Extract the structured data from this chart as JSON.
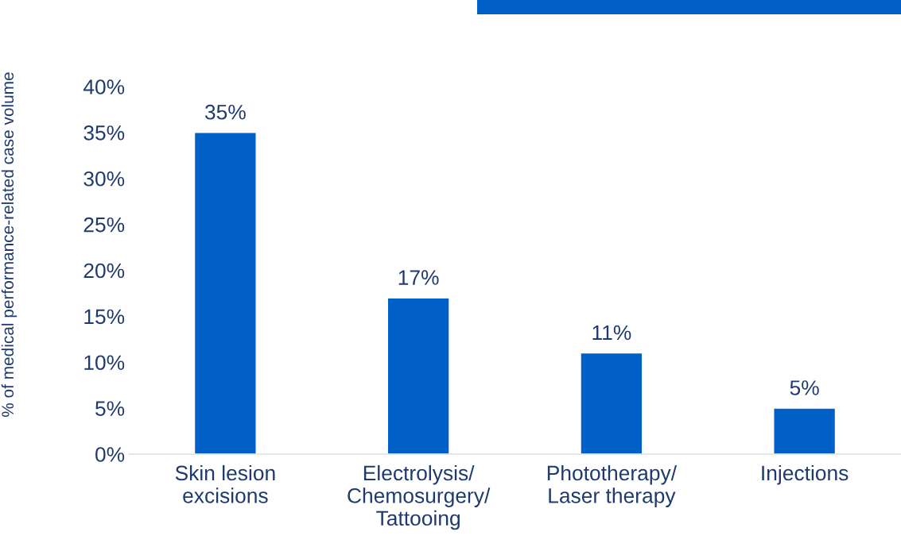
{
  "chart_data": {
    "type": "bar",
    "ylabel": "% of medical performance-related case volume",
    "categories": [
      "Skin lesion\nexcisions",
      "Electrolysis/\nChemosurgery/\nTattooing",
      "Phototherapy/\nLaser therapy",
      "Injections"
    ],
    "values": [
      35,
      17,
      11,
      5
    ],
    "color": "#0060c8",
    "value_labels": [
      "35%",
      "17%",
      "11%",
      "5%"
    ],
    "ylim": [
      0,
      40
    ],
    "yticks": [
      {
        "value": 0,
        "label": "0%"
      },
      {
        "value": 5,
        "label": "5%"
      },
      {
        "value": 10,
        "label": "10%"
      },
      {
        "value": 15,
        "label": "15%"
      },
      {
        "value": 20,
        "label": "20%"
      },
      {
        "value": 25,
        "label": "25%"
      },
      {
        "value": 30,
        "label": "30%"
      },
      {
        "value": 35,
        "label": "35%"
      },
      {
        "value": 40,
        "label": "40%"
      }
    ],
    "grid": false,
    "legend": false
  }
}
